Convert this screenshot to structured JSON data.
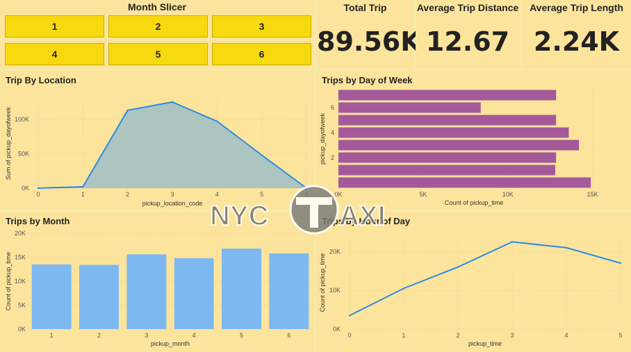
{
  "slicer": {
    "title": "Month Slicer",
    "options": [
      "1",
      "2",
      "3",
      "4",
      "5",
      "6"
    ]
  },
  "kpis": [
    {
      "label": "Total Trip",
      "value": "89.56K"
    },
    {
      "label": "Average Trip Distance",
      "value": "12.67"
    },
    {
      "label": "Average Trip Length",
      "value": "2.24K"
    }
  ],
  "watermark": {
    "left": "NYC",
    "right": "AXI"
  },
  "colors": {
    "background": "#f7eaa7",
    "panel": "#fde49d",
    "slicer_button": "#f7d90f",
    "line": "#2b8be6",
    "area_fill": "#a3c1c4",
    "bar_purple": "#a45a9a",
    "bar_blue": "#7db9f0"
  },
  "chart_data": [
    {
      "id": "location",
      "type": "area",
      "title": "Trip By Location",
      "xlabel": "pickup_location_code",
      "ylabel": "Sum of pickup_dayofweek",
      "x": [
        0,
        1,
        2,
        3,
        4,
        5,
        6
      ],
      "y": [
        0,
        2000,
        113000,
        125000,
        97000,
        48000,
        0
      ],
      "xlim": [
        0,
        6
      ],
      "ylim": [
        0,
        130000
      ],
      "yticks": [
        0,
        50000,
        100000
      ],
      "ytick_labels": [
        "0K",
        "50K",
        "100K"
      ],
      "xtick_labels": [
        "0",
        "1",
        "2",
        "3",
        "4",
        "5",
        "6"
      ]
    },
    {
      "id": "dow",
      "type": "bar",
      "orientation": "horizontal",
      "title": "Trips by Day of Week",
      "xlabel": "Count of pickup_time",
      "ylabel": "pickup_dayofweek",
      "categories": [
        0,
        1,
        2,
        3,
        4,
        5,
        6,
        7
      ],
      "values": [
        14900,
        12800,
        12850,
        14200,
        13600,
        12850,
        8400,
        12850
      ],
      "xlim": [
        0,
        16000
      ],
      "xticks": [
        0,
        5000,
        10000,
        15000
      ],
      "xtick_labels": [
        "0K",
        "5K",
        "10K",
        "15K"
      ],
      "ytick_labels": [
        "2",
        "4",
        "6"
      ]
    },
    {
      "id": "month",
      "type": "bar",
      "title": "Trips by Month",
      "xlabel": "pickup_month",
      "ylabel": "Count of pickup_time",
      "categories": [
        "1",
        "2",
        "3",
        "4",
        "5",
        "6"
      ],
      "values": [
        13500,
        13400,
        15600,
        14800,
        16800,
        15800
      ],
      "ylim": [
        0,
        20000
      ],
      "yticks": [
        0,
        5000,
        10000,
        15000,
        20000
      ],
      "ytick_labels": [
        "0K",
        "5K",
        "10K",
        "15K",
        "20K"
      ]
    },
    {
      "id": "hour",
      "type": "line",
      "title": "Trips by Hour of Day",
      "xlabel": "pickup_time",
      "ylabel": "Count of pickup_time",
      "x": [
        0,
        1,
        2,
        3,
        4,
        5
      ],
      "y": [
        3500,
        10500,
        16000,
        22500,
        21000,
        17000
      ],
      "xlim": [
        0,
        5
      ],
      "ylim": [
        0,
        24000
      ],
      "yticks": [
        0,
        10000,
        20000
      ],
      "ytick_labels": [
        "0K",
        "10K",
        "20K"
      ],
      "xtick_labels": [
        "0",
        "1",
        "2",
        "3",
        "4",
        "5"
      ]
    }
  ]
}
